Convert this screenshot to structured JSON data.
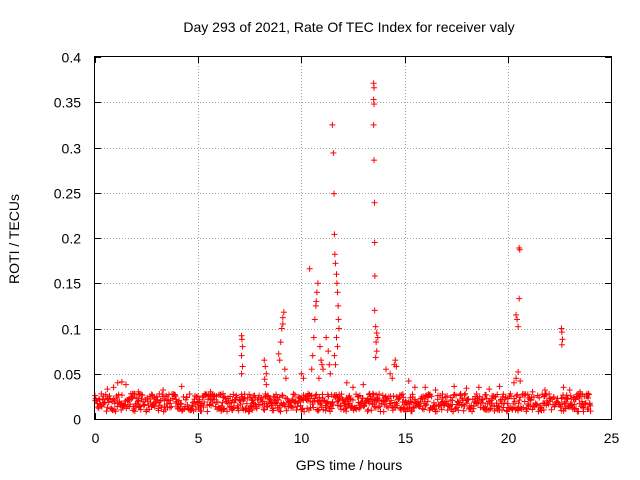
{
  "chart_data": {
    "type": "scatter",
    "title": "Day 293 of 2021, Rate Of TEC Index for receiver valy",
    "xlabel": "GPS time / hours",
    "ylabel": "ROTI / TECUs",
    "xlim": [
      0,
      25
    ],
    "ylim": [
      0,
      0.4
    ],
    "x_ticks": [
      0,
      5,
      10,
      15,
      20,
      25
    ],
    "y_ticks": [
      0,
      0.05,
      0.1,
      0.15,
      0.2,
      0.25,
      0.3,
      0.35,
      0.4
    ],
    "x_tick_labels": [
      "0",
      "5",
      "10",
      "15",
      "20",
      "25"
    ],
    "y_tick_labels": [
      "0",
      "0.05",
      "0.1",
      "0.15",
      "0.2",
      "0.25",
      "0.3",
      "0.35",
      "0.4"
    ],
    "grid": true,
    "marker": "+",
    "marker_color": "#ff0000",
    "baseline_band": {
      "x_range": [
        0,
        24
      ],
      "y_range": [
        0.008,
        0.028
      ]
    },
    "series": [
      {
        "name": "ROTI",
        "points": [
          [
            0.9,
            0.035
          ],
          [
            1.1,
            0.04
          ],
          [
            1.3,
            0.041
          ],
          [
            1.5,
            0.038
          ],
          [
            0.6,
            0.033
          ],
          [
            2.1,
            0.03
          ],
          [
            3.3,
            0.032
          ],
          [
            4.2,
            0.036
          ],
          [
            5.6,
            0.03
          ],
          [
            6.2,
            0.028
          ],
          [
            7.1,
            0.092
          ],
          [
            7.12,
            0.088
          ],
          [
            7.15,
            0.08
          ],
          [
            7.1,
            0.07
          ],
          [
            7.15,
            0.058
          ],
          [
            7.1,
            0.05
          ],
          [
            8.2,
            0.065
          ],
          [
            8.25,
            0.058
          ],
          [
            8.3,
            0.05
          ],
          [
            8.22,
            0.044
          ],
          [
            8.3,
            0.038
          ],
          [
            8.9,
            0.072
          ],
          [
            8.95,
            0.065
          ],
          [
            9.0,
            0.085
          ],
          [
            9.05,
            0.1
          ],
          [
            9.1,
            0.112
          ],
          [
            9.15,
            0.118
          ],
          [
            9.1,
            0.105
          ],
          [
            9.2,
            0.055
          ],
          [
            9.25,
            0.045
          ],
          [
            10.0,
            0.05
          ],
          [
            10.1,
            0.045
          ],
          [
            10.4,
            0.166
          ],
          [
            10.5,
            0.055
          ],
          [
            10.55,
            0.07
          ],
          [
            10.6,
            0.09
          ],
          [
            10.65,
            0.11
          ],
          [
            10.7,
            0.125
          ],
          [
            10.75,
            0.14
          ],
          [
            10.8,
            0.15
          ],
          [
            10.72,
            0.13
          ],
          [
            10.9,
            0.08
          ],
          [
            10.95,
            0.065
          ],
          [
            11.0,
            0.06
          ],
          [
            11.05,
            0.055
          ],
          [
            10.85,
            0.045
          ],
          [
            11.2,
            0.09
          ],
          [
            11.3,
            0.075
          ],
          [
            11.35,
            0.06
          ],
          [
            11.4,
            0.05
          ],
          [
            11.5,
            0.325
          ],
          [
            11.55,
            0.294
          ],
          [
            11.58,
            0.249
          ],
          [
            11.6,
            0.204
          ],
          [
            11.62,
            0.182
          ],
          [
            11.65,
            0.172
          ],
          [
            11.7,
            0.16
          ],
          [
            11.72,
            0.15
          ],
          [
            11.75,
            0.14
          ],
          [
            11.78,
            0.125
          ],
          [
            11.8,
            0.11
          ],
          [
            11.82,
            0.1
          ],
          [
            11.7,
            0.09
          ],
          [
            11.75,
            0.08
          ],
          [
            11.6,
            0.07
          ],
          [
            11.65,
            0.06
          ],
          [
            12.2,
            0.04
          ],
          [
            12.5,
            0.035
          ],
          [
            13.0,
            0.038
          ],
          [
            13.5,
            0.371
          ],
          [
            13.52,
            0.366
          ],
          [
            13.5,
            0.353
          ],
          [
            13.52,
            0.348
          ],
          [
            13.5,
            0.325
          ],
          [
            13.52,
            0.286
          ],
          [
            13.54,
            0.239
          ],
          [
            13.55,
            0.195
          ],
          [
            13.56,
            0.158
          ],
          [
            13.55,
            0.12
          ],
          [
            13.6,
            0.102
          ],
          [
            13.65,
            0.095
          ],
          [
            13.7,
            0.09
          ],
          [
            13.62,
            0.085
          ],
          [
            13.65,
            0.075
          ],
          [
            13.6,
            0.068
          ],
          [
            14.1,
            0.055
          ],
          [
            14.3,
            0.05
          ],
          [
            14.5,
            0.06
          ],
          [
            14.55,
            0.065
          ],
          [
            14.6,
            0.058
          ],
          [
            14.4,
            0.045
          ],
          [
            15.2,
            0.042
          ],
          [
            15.5,
            0.035
          ],
          [
            16.0,
            0.035
          ],
          [
            16.5,
            0.032
          ],
          [
            17.4,
            0.036
          ],
          [
            18.0,
            0.034
          ],
          [
            18.6,
            0.035
          ],
          [
            19.1,
            0.033
          ],
          [
            19.6,
            0.036
          ],
          [
            20.4,
            0.115
          ],
          [
            20.45,
            0.11
          ],
          [
            20.5,
            0.102
          ],
          [
            20.55,
            0.189
          ],
          [
            20.58,
            0.187
          ],
          [
            20.55,
            0.133
          ],
          [
            20.5,
            0.052
          ],
          [
            20.4,
            0.045
          ],
          [
            20.6,
            0.042
          ],
          [
            20.3,
            0.04
          ],
          [
            21.2,
            0.03
          ],
          [
            21.8,
            0.032
          ],
          [
            22.6,
            0.1
          ],
          [
            22.62,
            0.096
          ],
          [
            22.65,
            0.088
          ],
          [
            22.62,
            0.082
          ],
          [
            22.7,
            0.035
          ],
          [
            23.0,
            0.032
          ],
          [
            23.5,
            0.03
          ],
          [
            23.9,
            0.028
          ]
        ]
      }
    ]
  }
}
